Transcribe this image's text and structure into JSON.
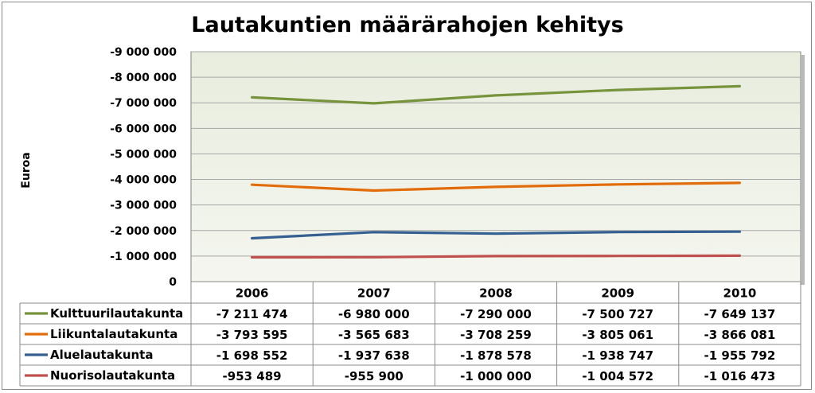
{
  "chart_data": {
    "type": "line",
    "title": "Lautakuntien määrärahojen kehitys",
    "xlabel": "",
    "ylabel": "Euroa",
    "categories": [
      "2006",
      "2007",
      "2008",
      "2009",
      "2010"
    ],
    "y_ticks": [
      "0",
      "-1 000 000",
      "-2 000 000",
      "-3 000 000",
      "-4 000 000",
      "-5 000 000",
      "-6 000 000",
      "-7 000 000",
      "-8 000 000",
      "-9 000 000"
    ],
    "ylim": [
      0,
      -9000000
    ],
    "y_axis_reversed": true,
    "grid": true,
    "legend": "data-table",
    "series": [
      {
        "name": "Kulttuurilautakunta",
        "color": "#77933c",
        "values": [
          -7211474,
          -6980000,
          -7290000,
          -7500727,
          -7649137
        ],
        "labels": [
          "-7 211 474",
          "-6 980 000",
          "-7 290 000",
          "-7 500 727",
          "-7 649 137"
        ]
      },
      {
        "name": "Liikuntalautakunta",
        "color": "#e36c0a",
        "values": [
          -3793595,
          -3565683,
          -3708259,
          -3805061,
          -3866081
        ],
        "labels": [
          "-3 793 595",
          "-3 565 683",
          "-3 708 259",
          "-3 805 061",
          "-3 866 081"
        ]
      },
      {
        "name": "Aluelautakunta",
        "color": "#365f91",
        "values": [
          -1698552,
          -1937638,
          -1878578,
          -1938747,
          -1955792
        ],
        "labels": [
          "-1 698 552",
          "-1 937 638",
          "-1 878 578",
          "-1 938 747",
          "-1 955 792"
        ]
      },
      {
        "name": "Nuorisolautakunta",
        "color": "#c0504d",
        "values": [
          -953489,
          -955900,
          -1000000,
          -1004572,
          -1016473
        ],
        "labels": [
          "-953 489",
          "-955 900",
          "-1 000 000",
          "-1 004 572",
          "-1 016 473"
        ]
      }
    ]
  },
  "colors": {
    "plot_background": "#eef1e6",
    "gridline": "#a6a6a6",
    "table_border": "#8a8a8a"
  }
}
